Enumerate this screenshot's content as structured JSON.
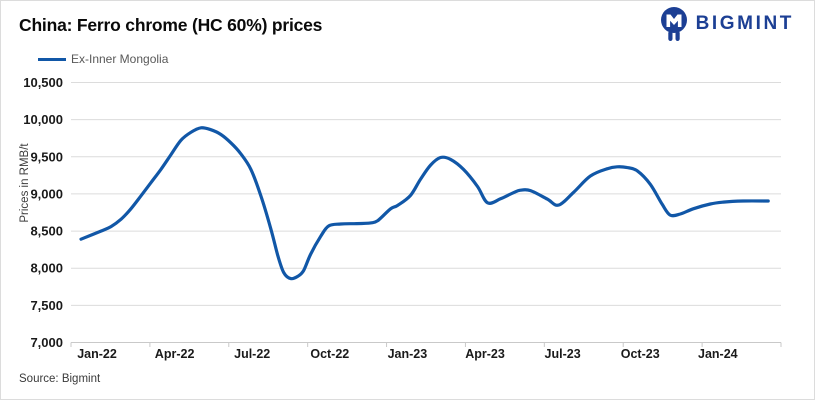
{
  "header": {
    "title": "China: Ferro chrome (HC 60%) prices",
    "logo_text": "BIGMINT"
  },
  "legend": {
    "series_label": "Ex-Inner Mongolia"
  },
  "footer": {
    "source": "Source: Bigmint"
  },
  "colors": {
    "line": "#1157a7",
    "logo_navy": "#1c3f94",
    "grid": "#dcdcdc",
    "axis": "#c9c9c9",
    "tick_text": "#1a1a1a"
  },
  "chart_data": {
    "type": "line",
    "title": "China: Ferro chrome (HC 60%) prices",
    "xlabel": "",
    "ylabel": "Prices in RMB/t",
    "ylim": [
      7000,
      10500
    ],
    "grid": "horizontal",
    "legend_position": "top-left",
    "x_unit": "months_after_Jan-2022",
    "yticks": [
      {
        "value": 7000,
        "label": "7,000"
      },
      {
        "value": 7500,
        "label": "7,500"
      },
      {
        "value": 8000,
        "label": "8,000"
      },
      {
        "value": 8500,
        "label": "8,500"
      },
      {
        "value": 9000,
        "label": "9,000"
      },
      {
        "value": 9500,
        "label": "9,500"
      },
      {
        "value": 10000,
        "label": "10,000"
      },
      {
        "value": 10500,
        "label": "10,500"
      }
    ],
    "xticks": [
      {
        "m": 0,
        "label": "Jan-22"
      },
      {
        "m": 3,
        "label": "Apr-22"
      },
      {
        "m": 6,
        "label": "Jul-22"
      },
      {
        "m": 9,
        "label": "Oct-22"
      },
      {
        "m": 12,
        "label": "Jan-23"
      },
      {
        "m": 15,
        "label": "Apr-23"
      },
      {
        "m": 18,
        "label": "Jul-23"
      },
      {
        "m": 21,
        "label": "Oct-23"
      },
      {
        "m": 24,
        "label": "Jan-24"
      }
    ],
    "series": [
      {
        "name": "Ex-Inner Mongolia",
        "color": "#1157a7",
        "points": [
          [
            -0.62,
            8390
          ],
          [
            0.15,
            8500
          ],
          [
            0.54,
            8560
          ],
          [
            0.93,
            8660
          ],
          [
            1.31,
            8800
          ],
          [
            1.7,
            8975
          ],
          [
            2.08,
            9150
          ],
          [
            2.47,
            9330
          ],
          [
            2.86,
            9530
          ],
          [
            3.24,
            9720
          ],
          [
            3.63,
            9830
          ],
          [
            4.02,
            9890
          ],
          [
            4.4,
            9865
          ],
          [
            4.79,
            9800
          ],
          [
            5.17,
            9690
          ],
          [
            5.56,
            9540
          ],
          [
            5.95,
            9330
          ],
          [
            6.33,
            8980
          ],
          [
            6.72,
            8530
          ],
          [
            6.99,
            8170
          ],
          [
            7.22,
            7940
          ],
          [
            7.49,
            7860
          ],
          [
            7.76,
            7890
          ],
          [
            7.99,
            7970
          ],
          [
            8.26,
            8190
          ],
          [
            8.65,
            8430
          ],
          [
            8.96,
            8570
          ],
          [
            9.42,
            8595
          ],
          [
            10.04,
            8600
          ],
          [
            10.58,
            8610
          ],
          [
            10.85,
            8640
          ],
          [
            11.35,
            8800
          ],
          [
            11.62,
            8845
          ],
          [
            12.12,
            8980
          ],
          [
            12.51,
            9200
          ],
          [
            12.9,
            9390
          ],
          [
            13.28,
            9490
          ],
          [
            13.67,
            9465
          ],
          [
            14.17,
            9330
          ],
          [
            14.71,
            9100
          ],
          [
            15.1,
            8880
          ],
          [
            15.6,
            8935
          ],
          [
            16.06,
            9010
          ],
          [
            16.37,
            9050
          ],
          [
            16.76,
            9045
          ],
          [
            17.41,
            8930
          ],
          [
            17.84,
            8850
          ],
          [
            18.42,
            9020
          ],
          [
            19.07,
            9240
          ],
          [
            19.73,
            9340
          ],
          [
            20.12,
            9365
          ],
          [
            20.5,
            9355
          ],
          [
            20.89,
            9310
          ],
          [
            21.39,
            9130
          ],
          [
            21.85,
            8860
          ],
          [
            22.16,
            8715
          ],
          [
            22.55,
            8730
          ],
          [
            23.05,
            8800
          ],
          [
            23.71,
            8865
          ],
          [
            24.21,
            8890
          ],
          [
            24.98,
            8905
          ],
          [
            25.95,
            8905
          ]
        ]
      }
    ]
  }
}
